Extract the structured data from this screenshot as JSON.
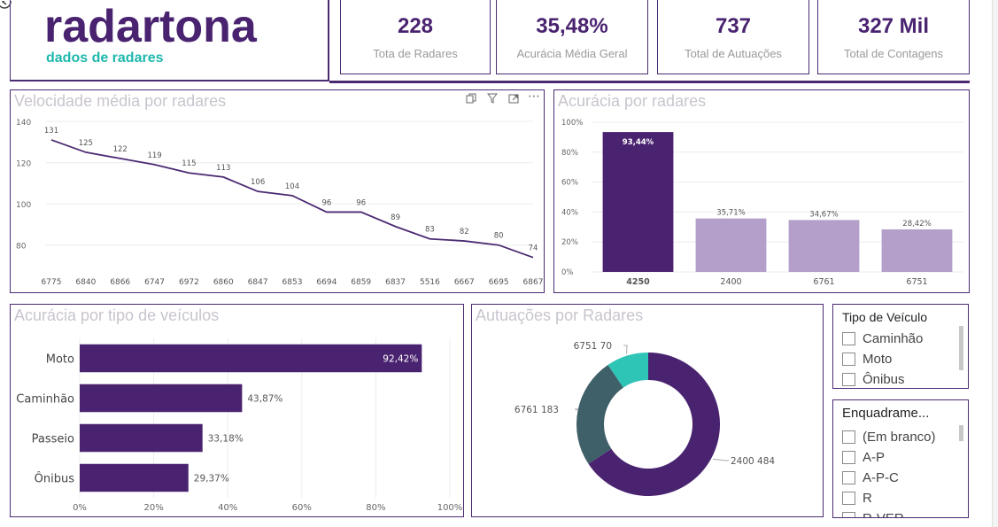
{
  "logo": {
    "name": "radartona",
    "subtitle": "dados de radares"
  },
  "kpis": [
    {
      "value": "228",
      "label": "Tota de Radares"
    },
    {
      "value": "35,48%",
      "label": "Acurácia Média Geral"
    },
    {
      "value": "737",
      "label": "Total de Autuações"
    },
    {
      "value": "327 Mil",
      "label": "Total de Contagens"
    }
  ],
  "speed_chart": {
    "title": "Velocidade média por radares",
    "y_ticks": [
      "140",
      "120",
      "100",
      "80"
    ],
    "icons": [
      "copy-icon",
      "filter-icon",
      "focus-mode-icon",
      "more-options-icon"
    ]
  },
  "accuracy_radar_chart": {
    "title": "Acurácia por radares",
    "y_ticks": [
      "100%",
      "80%",
      "60%",
      "40%",
      "20%",
      "0%"
    ]
  },
  "vehicle_chart": {
    "title": "Acurácia por tipo de veículos",
    "x_ticks": [
      "0%",
      "20%",
      "40%",
      "60%",
      "80%",
      "100%"
    ]
  },
  "donut_chart": {
    "title": "Autuações por Radares"
  },
  "slicer_vehicle": {
    "title": "Tipo de Veículo",
    "items": [
      "Caminhão",
      "Moto",
      "Ônibus"
    ]
  },
  "slicer_frame": {
    "title": "Enquadrame...",
    "items": [
      "(Em branco)",
      "A-P",
      "A-P-C",
      "R",
      "R-VER"
    ]
  },
  "chart_data": [
    {
      "type": "line",
      "title": "Velocidade média por radares",
      "categories": [
        "6775",
        "6840",
        "6866",
        "6747",
        "6972",
        "6860",
        "6847",
        "6853",
        "6694",
        "6859",
        "6837",
        "5516",
        "6667",
        "6695",
        "6867"
      ],
      "values": [
        131,
        125,
        122,
        119,
        115,
        113,
        106,
        104,
        96,
        96,
        89,
        83,
        82,
        80,
        74
      ],
      "ylim": [
        70,
        140
      ],
      "color": "#4b2a72"
    },
    {
      "type": "bar",
      "title": "Acurácia por radares",
      "categories": [
        "4250",
        "2400",
        "6761",
        "6751"
      ],
      "values": [
        93.44,
        35.71,
        34.67,
        28.42
      ],
      "labels": [
        "93,44%",
        "35,71%",
        "34,67%",
        "28,42%"
      ],
      "ylim": [
        0,
        100
      ],
      "colors": [
        "#4a2370",
        "#b39fc9",
        "#b39fc9",
        "#b39fc9"
      ]
    },
    {
      "type": "bar",
      "orientation": "horizontal",
      "title": "Acurácia por tipo de veículos",
      "categories": [
        "Moto",
        "Caminhão",
        "Passeio",
        "Ônibus"
      ],
      "values": [
        92.42,
        43.87,
        33.18,
        29.37
      ],
      "labels": [
        "92,42%",
        "43,87%",
        "33,18%",
        "29,37%"
      ],
      "xlim": [
        0,
        100
      ],
      "color": "#4a2370"
    },
    {
      "type": "pie",
      "title": "Autuações por Radares",
      "categories": [
        "2400",
        "6761",
        "6751"
      ],
      "values": [
        484,
        183,
        70
      ],
      "labels": [
        "2400 484",
        "6761 183",
        "6751 70"
      ],
      "colors": [
        "#4a2370",
        "#3f5f69",
        "#2ec4b6"
      ]
    }
  ]
}
